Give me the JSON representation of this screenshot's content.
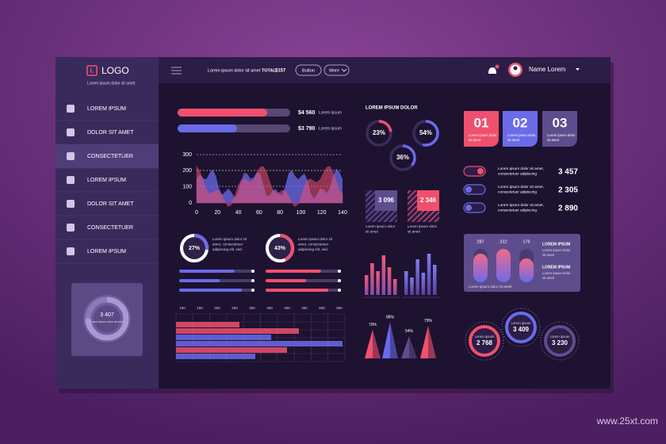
{
  "logo": {
    "title": "LOGO",
    "subtitle": "Lorem ipsum dolor sit amet"
  },
  "header": {
    "text": "Lorem ipsum dolor sit amet",
    "total_label": "TOTAL:",
    "total_value": "$157",
    "buttons": [
      "Button",
      "More"
    ],
    "user": "Name Lorem"
  },
  "sidebar": {
    "menu": [
      "LOREM IPSUM",
      "DOLOR SIT AMET",
      "CONSECTETUER",
      "LOREM IPSUM",
      "DOLOR SIT AMET",
      "CONSECTETUER",
      "LOREM IPSUM"
    ],
    "widget": {
      "value": "3 407",
      "label": "Lorem ipsum dolor sit amet"
    }
  },
  "progress": [
    {
      "value": "$4 560",
      "label": "Lorem ipsum"
    },
    {
      "value": "$3 790",
      "label": "Lorem ipsum"
    }
  ],
  "area_chart": {
    "yticks": [
      "300",
      "200",
      "100",
      "0"
    ],
    "xticks": [
      "0",
      "20",
      "40",
      "60",
      "80",
      "100",
      "120",
      "140"
    ]
  },
  "donuts": [
    {
      "value": "27%",
      "text": [
        "Lorem ipsum dolor sit",
        "amet, consectetuer",
        "adipiscing elit, sed."
      ]
    },
    {
      "value": "43%",
      "text": [
        "Lorem ipsum dolor sit",
        "amet, consectetuer",
        "adipiscing elit, sed."
      ]
    }
  ],
  "grid_chart": {
    "ticks": [
      "100",
      "150",
      "200",
      "250",
      "300",
      "350",
      "400",
      "450",
      "500",
      "550"
    ]
  },
  "rings": {
    "title": "LOREM IPSUM DOLOR",
    "items": [
      "23%",
      "54%",
      "36%"
    ]
  },
  "boxes": [
    {
      "value": "3 096",
      "text": [
        "Lorem ipsum dolor",
        "sit amet"
      ]
    },
    {
      "value": "2 346",
      "text": [
        "Lorem ipsum dolor",
        "sit amet"
      ]
    }
  ],
  "triangles": [
    "70%",
    "88%",
    "54%",
    "79%"
  ],
  "tiles": [
    {
      "number": "01",
      "text": [
        "Lorem ipsum dolor",
        "sit amet"
      ]
    },
    {
      "number": "02",
      "text": [
        "Lorem ipsum dolor",
        "sit amet"
      ]
    },
    {
      "number": "03",
      "text": [
        "Lorem ipsum dolor",
        "sit amet"
      ]
    }
  ],
  "toggles": [
    {
      "text": [
        "Lorem ipsum dolor sit amet,",
        "consectetuer adipiscing"
      ],
      "value": "3 457"
    },
    {
      "text": [
        "Lorem ipsum dolor sit amet,",
        "consectetuer adipiscing"
      ],
      "value": "2 305"
    },
    {
      "text": [
        "Lorem ipsum dolor sit amet,",
        "consectetuer adipiscing"
      ],
      "value": "2 890"
    }
  ],
  "bar_card": {
    "values": [
      "287",
      "312",
      "176"
    ],
    "items": [
      {
        "title": "LOREM IPSUM",
        "text": [
          "Lorem ipsum dolor",
          "sit amet"
        ]
      },
      {
        "title": "LOREM IPSUM",
        "text": [
          "Lorem ipsum dolor",
          "sit amet"
        ]
      }
    ],
    "footer": "Lorem ipsum dolor sit amet"
  },
  "stat_circles": [
    {
      "value": "2 768",
      "label": "Lorem ipsum"
    },
    {
      "value": "3 409",
      "label": "Lorem ipsum"
    },
    {
      "value": "3 230",
      "label": "Lorem ipsum"
    }
  ],
  "watermark": "www.25xt.com"
}
